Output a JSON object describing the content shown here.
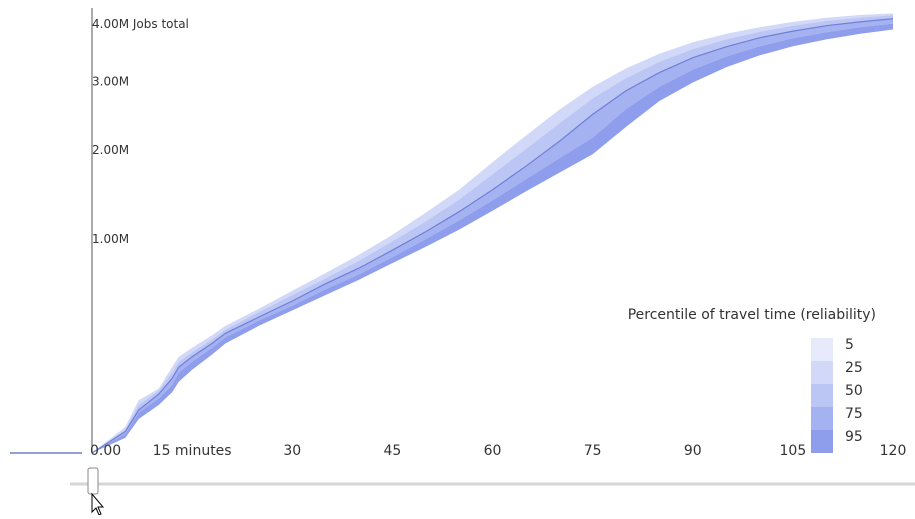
{
  "chart_data": {
    "type": "area",
    "title": "",
    "ylabel": "Jobs total",
    "xlabel_inline": "minutes",
    "x_ticks": [
      0,
      15,
      30,
      45,
      60,
      75,
      90,
      105,
      120
    ],
    "x_tick_labels": [
      "0",
      "15",
      "30",
      "45",
      "60",
      "75",
      "90",
      "105",
      "120"
    ],
    "y_ticks": [
      0,
      1000000,
      2000000,
      3000000,
      4000000
    ],
    "y_tick_labels": [
      "0.00",
      "1.00M",
      "2.00M",
      "3.00M",
      "4.00M"
    ],
    "xlim": [
      0,
      120
    ],
    "ylim": [
      0,
      4200000
    ],
    "y_scale": "sqrt",
    "legend": {
      "title": "Percentile of travel time (reliability)",
      "placement": "right",
      "entries": [
        "5",
        "25",
        "50",
        "75",
        "95"
      ],
      "colors": [
        "#E6EAFB",
        "#D2D9F8",
        "#BCC6F5",
        "#A5B2F1",
        "#8E9DEC"
      ]
    },
    "line_color": "#6F7FD6",
    "x": [
      0,
      5,
      7,
      10,
      12,
      13,
      15,
      18,
      20,
      25,
      30,
      35,
      40,
      45,
      50,
      55,
      60,
      65,
      70,
      75,
      80,
      85,
      90,
      95,
      100,
      105,
      110,
      115,
      120
    ],
    "series": [
      {
        "name": "5",
        "values": [
          0,
          15000,
          60000,
          90000,
          160000,
          200000,
          240000,
          300000,
          350000,
          450000,
          570000,
          700000,
          850000,
          1030000,
          1250000,
          1500000,
          1830000,
          2180000,
          2550000,
          2900000,
          3200000,
          3450000,
          3650000,
          3800000,
          3920000,
          4020000,
          4100000,
          4150000,
          4180000
        ]
      },
      {
        "name": "25",
        "values": [
          0,
          12000,
          50000,
          85000,
          140000,
          180000,
          220000,
          280000,
          330000,
          430000,
          540000,
          660000,
          800000,
          970000,
          1160000,
          1390000,
          1680000,
          2000000,
          2350000,
          2720000,
          3040000,
          3310000,
          3530000,
          3700000,
          3840000,
          3950000,
          4040000,
          4100000,
          4150000
        ]
      },
      {
        "name": "50",
        "values": [
          0,
          10000,
          40000,
          75000,
          120000,
          160000,
          200000,
          260000,
          310000,
          400000,
          500000,
          620000,
          740000,
          890000,
          1060000,
          1260000,
          1500000,
          1780000,
          2100000,
          2480000,
          2840000,
          3130000,
          3380000,
          3570000,
          3730000,
          3850000,
          3950000,
          4020000,
          4080000
        ]
      },
      {
        "name": "75",
        "values": [
          0,
          8000,
          35000,
          65000,
          100000,
          140000,
          180000,
          240000,
          290000,
          380000,
          470000,
          580000,
          690000,
          830000,
          990000,
          1170000,
          1380000,
          1620000,
          1880000,
          2150000,
          2560000,
          2900000,
          3180000,
          3400000,
          3580000,
          3720000,
          3830000,
          3920000,
          3990000
        ]
      },
      {
        "name": "95",
        "values": [
          0,
          5000,
          25000,
          50000,
          80000,
          110000,
          150000,
          210000,
          260000,
          350000,
          440000,
          540000,
          650000,
          780000,
          920000,
          1080000,
          1270000,
          1480000,
          1700000,
          1930000,
          2300000,
          2680000,
          2970000,
          3220000,
          3420000,
          3580000,
          3700000,
          3800000,
          3880000
        ]
      },
      {
        "name": "median",
        "values": [
          0,
          10000,
          40000,
          75000,
          120000,
          160000,
          200000,
          260000,
          310000,
          400000,
          500000,
          620000,
          740000,
          890000,
          1060000,
          1260000,
          1500000,
          1780000,
          2100000,
          2480000,
          2840000,
          3130000,
          3380000,
          3570000,
          3730000,
          3850000,
          3950000,
          4020000,
          4080000
        ]
      }
    ]
  },
  "slider": {
    "value_minutes": 0
  }
}
